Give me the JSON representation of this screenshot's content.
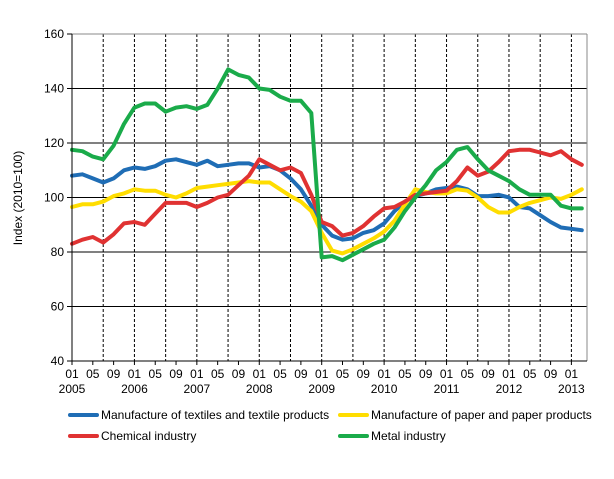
{
  "chart_data": {
    "type": "line",
    "title": "",
    "xlabel": "",
    "ylabel": "Index (2010=100)",
    "ylim": [
      40,
      160
    ],
    "yticks": [
      40,
      60,
      80,
      100,
      120,
      140,
      160
    ],
    "grid": "horizontal solid, vertical dashed",
    "legend": "bottom",
    "x": [
      "2005-01",
      "2005-03",
      "2005-05",
      "2005-07",
      "2005-09",
      "2005-11",
      "2006-01",
      "2006-03",
      "2006-05",
      "2006-07",
      "2006-09",
      "2006-11",
      "2007-01",
      "2007-03",
      "2007-05",
      "2007-07",
      "2007-09",
      "2007-11",
      "2008-01",
      "2008-03",
      "2008-05",
      "2008-07",
      "2008-09",
      "2008-11",
      "2009-01",
      "2009-03",
      "2009-05",
      "2009-07",
      "2009-09",
      "2009-11",
      "2010-01",
      "2010-03",
      "2010-05",
      "2010-07",
      "2010-09",
      "2010-11",
      "2011-01",
      "2011-03",
      "2011-05",
      "2011-07",
      "2011-09",
      "2011-11",
      "2012-01",
      "2012-03",
      "2012-05",
      "2012-07",
      "2012-09",
      "2012-11",
      "2013-01",
      "2013-03"
    ],
    "xtick_months": [
      "01",
      "05",
      "09"
    ],
    "xtick_years": [
      "2005",
      "2006",
      "2007",
      "2008",
      "2009",
      "2010",
      "2011",
      "2012",
      "2013"
    ],
    "series": [
      {
        "name": "Manufacture of textiles and textile products",
        "color": "#1f6db5",
        "values": [
          108,
          108.5,
          107,
          105.5,
          107,
          110,
          111,
          110.5,
          111.5,
          113.5,
          114,
          113,
          112,
          113.5,
          111.5,
          112,
          112.5,
          112.5,
          111,
          111.5,
          110,
          107,
          103,
          97,
          90,
          86,
          84.5,
          85,
          87,
          88,
          90.5,
          95,
          98.5,
          100.5,
          101.5,
          103,
          103.5,
          104,
          103,
          100.5,
          100.5,
          101,
          100,
          96.5,
          96,
          93.5,
          91,
          89,
          88.5,
          88
        ]
      },
      {
        "name": "Manufacture of paper and paper products",
        "color": "#ffdd00",
        "values": [
          96.5,
          97.5,
          97.5,
          98.5,
          100.5,
          101.5,
          103,
          102.5,
          102.5,
          101,
          100,
          101.5,
          103.5,
          104,
          104.5,
          105,
          105.5,
          106,
          105.5,
          105.5,
          103,
          100.5,
          98.5,
          95,
          87,
          80.5,
          79.5,
          81,
          83,
          85,
          87.5,
          91.5,
          97.5,
          103,
          102,
          101.5,
          101.5,
          103,
          102.5,
          100,
          96.5,
          94.5,
          94.5,
          96.5,
          98,
          99,
          100,
          99.5,
          101,
          103
        ]
      },
      {
        "name": "Chemical industry",
        "color": "#e03232",
        "values": [
          83,
          84.5,
          85.5,
          83.5,
          86.5,
          90.5,
          91,
          90,
          94,
          98,
          98,
          98,
          96.5,
          98,
          100,
          101,
          104.5,
          108,
          114,
          112,
          110,
          111,
          109,
          101,
          91,
          89.5,
          86,
          87,
          89.5,
          93,
          96,
          96.5,
          98.5,
          101,
          101.5,
          102,
          102.5,
          106,
          111,
          108,
          109.5,
          113,
          117,
          117.5,
          117.5,
          116.5,
          115.5,
          117,
          114,
          112
        ]
      },
      {
        "name": "Metal industry",
        "color": "#1aab4a",
        "values": [
          117.5,
          117,
          115,
          114,
          119,
          127,
          133,
          134.5,
          134.5,
          131.5,
          133,
          133.5,
          132.5,
          134,
          140,
          147,
          145,
          144,
          140,
          139.5,
          137,
          135.5,
          135.5,
          131,
          78,
          78.5,
          77,
          79,
          81,
          83,
          84.5,
          89,
          95,
          100,
          104.5,
          110,
          113,
          117.5,
          118.5,
          114,
          110,
          108,
          106,
          103,
          101,
          101,
          101,
          97,
          96,
          96
        ]
      }
    ]
  }
}
